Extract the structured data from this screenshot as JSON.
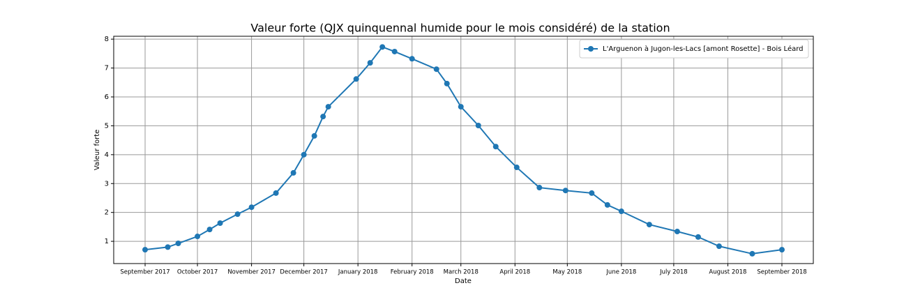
{
  "chart_data": {
    "type": "line",
    "title": "Valeur forte (QJX quinquennal humide pour le mois considéré) de la station",
    "xlabel": "Date",
    "ylabel": "Valeur forte",
    "x": [
      0,
      13,
      19,
      30,
      37,
      43,
      53,
      61,
      75,
      85,
      91,
      97,
      102,
      105,
      121,
      129,
      136,
      143,
      153,
      167,
      173,
      181,
      191,
      201,
      213,
      226,
      241,
      256,
      265,
      273,
      289,
      305,
      317,
      329,
      348,
      365
    ],
    "series": [
      {
        "name": "L'Arguenon à Jugon-les-Lacs [amont Rosette] - Bois Léard",
        "color": "#1f77b4",
        "values": [
          0.71,
          0.8,
          0.93,
          1.17,
          1.41,
          1.63,
          1.94,
          2.18,
          2.67,
          3.37,
          4.0,
          4.65,
          5.32,
          5.66,
          6.62,
          7.18,
          7.73,
          7.57,
          7.32,
          6.96,
          6.46,
          5.66,
          5.01,
          4.28,
          3.56,
          2.86,
          2.76,
          2.67,
          2.26,
          2.04,
          1.58,
          1.34,
          1.15,
          0.83,
          0.57,
          0.71
        ]
      }
    ],
    "xlim": [
      -18,
      383
    ],
    "xticks": [
      {
        "value": 0,
        "label": "September 2017"
      },
      {
        "value": 30,
        "label": "October 2017"
      },
      {
        "value": 61,
        "label": "November 2017"
      },
      {
        "value": 91,
        "label": "December 2017"
      },
      {
        "value": 122,
        "label": "January 2018"
      },
      {
        "value": 153,
        "label": "February 2018"
      },
      {
        "value": 181,
        "label": "March 2018"
      },
      {
        "value": 212,
        "label": "April 2018"
      },
      {
        "value": 242,
        "label": "May 2018"
      },
      {
        "value": 273,
        "label": "June 2018"
      },
      {
        "value": 303,
        "label": "July 2018"
      },
      {
        "value": 334,
        "label": "August 2018"
      },
      {
        "value": 365,
        "label": "September 2018"
      }
    ],
    "ylim": [
      0.23,
      8.1
    ],
    "yticks": [
      1,
      2,
      3,
      4,
      5,
      6,
      7,
      8
    ],
    "grid": true,
    "legend": "upper right"
  }
}
